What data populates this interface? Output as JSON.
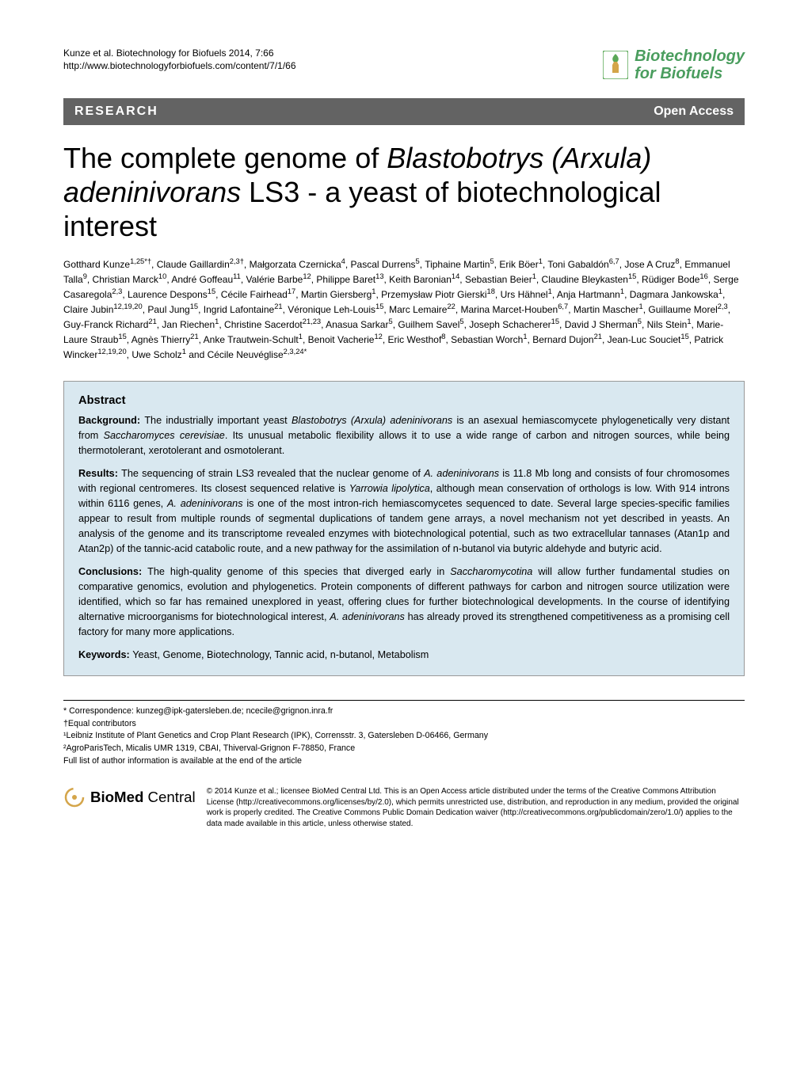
{
  "header": {
    "citation_line1": "Kunze et al. Biotechnology for Biofuels 2014, 7:66",
    "citation_line2": "http://www.biotechnologyforbiofuels.com/content/7/1/66",
    "journal_name_line1": "Biotechnology",
    "journal_name_line2": "for Biofuels",
    "logo_colors": {
      "leaf": "#5aa857",
      "flask": "#d4a54a",
      "bg": "#ffffff"
    }
  },
  "banner": {
    "left": "RESEARCH",
    "right": "Open Access",
    "bg_color": "#636363",
    "text_color": "#ffffff"
  },
  "title": {
    "prefix": "The complete genome of ",
    "italic": "Blastobotrys (Arxula) adeninivorans",
    "suffix": " LS3 - a yeast of biotechnological interest"
  },
  "authors_html": "Gotthard Kunze<sup>1,25*†</sup>, Claude Gaillardin<sup>2,3†</sup>, Małgorzata Czernicka<sup>4</sup>, Pascal Durrens<sup>5</sup>, Tiphaine Martin<sup>5</sup>, Erik Böer<sup>1</sup>, Toni Gabaldón<sup>6,7</sup>, Jose A Cruz<sup>8</sup>, Emmanuel Talla<sup>9</sup>, Christian Marck<sup>10</sup>, André Goffeau<sup>11</sup>, Valérie Barbe<sup>12</sup>, Philippe Baret<sup>13</sup>, Keith Baronian<sup>14</sup>, Sebastian Beier<sup>1</sup>, Claudine Bleykasten<sup>15</sup>, Rüdiger Bode<sup>16</sup>, Serge Casaregola<sup>2,3</sup>, Laurence Despons<sup>15</sup>, Cécile Fairhead<sup>17</sup>, Martin Giersberg<sup>1</sup>, Przemysław Piotr Gierski<sup>18</sup>, Urs Hähnel<sup>1</sup>, Anja Hartmann<sup>1</sup>, Dagmara Jankowska<sup>1</sup>, Claire Jubin<sup>12,19,20</sup>, Paul Jung<sup>15</sup>, Ingrid Lafontaine<sup>21</sup>, Véronique Leh-Louis<sup>15</sup>, Marc Lemaire<sup>22</sup>, Marina Marcet-Houben<sup>6,7</sup>, Martin Mascher<sup>1</sup>, Guillaume Morel<sup>2,3</sup>, Guy-Franck Richard<sup>21</sup>, Jan Riechen<sup>1</sup>, Christine Sacerdot<sup>21,23</sup>, Anasua Sarkar<sup>5</sup>, Guilhem Savel<sup>5</sup>, Joseph Schacherer<sup>15</sup>, David J Sherman<sup>5</sup>, Nils Stein<sup>1</sup>, Marie-Laure Straub<sup>15</sup>, Agnès Thierry<sup>21</sup>, Anke Trautwein-Schult<sup>1</sup>, Benoit Vacherie<sup>12</sup>, Eric Westhof<sup>8</sup>, Sebastian Worch<sup>1</sup>, Bernard Dujon<sup>21</sup>, Jean-Luc Souciet<sup>15</sup>, Patrick Wincker<sup>12,19,20</sup>, Uwe Scholz<sup>1</sup> and Cécile Neuvéglise<sup>2,3,24*</sup>",
  "abstract": {
    "header": "Abstract",
    "background_label": "Background: ",
    "background_text": "The industrially important yeast Blastobotrys (Arxula) adeninivorans is an asexual hemiascomycete phylogenetically very distant from Saccharomyces cerevisiae. Its unusual metabolic flexibility allows it to use a wide range of carbon and nitrogen sources, while being thermotolerant, xerotolerant and osmotolerant.",
    "results_label": "Results: ",
    "results_text": "The sequencing of strain LS3 revealed that the nuclear genome of A. adeninivorans is 11.8 Mb long and consists of four chromosomes with regional centromeres. Its closest sequenced relative is Yarrowia lipolytica, although mean conservation of orthologs is low. With 914 introns within 6116 genes, A. adeninivorans is one of the most intron-rich hemiascomycetes sequenced to date. Several large species-specific families appear to result from multiple rounds of segmental duplications of tandem gene arrays, a novel mechanism not yet described in yeasts. An analysis of the genome and its transcriptome revealed enzymes with biotechnological potential, such as two extracellular tannases (Atan1p and Atan2p) of the tannic-acid catabolic route, and a new pathway for the assimilation of n-butanol via butyric aldehyde and butyric acid.",
    "conclusions_label": "Conclusions: ",
    "conclusions_text": "The high-quality genome of this species that diverged early in Saccharomycotina will allow further fundamental studies on comparative genomics, evolution and phylogenetics. Protein components of different pathways for carbon and nitrogen source utilization were identified, which so far has remained unexplored in yeast, offering clues for further biotechnological developments. In the course of identifying alternative microorganisms for biotechnological interest, A. adeninivorans has already proved its strengthened competitiveness as a promising cell factory for many more applications.",
    "keywords_label": "Keywords: ",
    "keywords_text": "Yeast, Genome, Biotechnology, Tannic acid, n-butanol, Metabolism",
    "box_bg": "#d9e8f0",
    "box_border": "#999999"
  },
  "footer": {
    "correspondence": "* Correspondence: kunzeg@ipk-gatersleben.de; ncecile@grignon.inra.fr",
    "equal": "†Equal contributors",
    "affil1": "¹Leibniz Institute of Plant Genetics and Crop Plant Research (IPK), Corrensstr. 3, Gatersleben D-06466, Germany",
    "affil2": "²AgroParisTech, Micalis UMR 1319, CBAI, Thiverval-Grignon F-78850, France",
    "full_list": "Full list of author information is available at the end of the article"
  },
  "biomed": {
    "name_left": "BioMed",
    "name_right": " Central",
    "icon_color": "#d4a54a",
    "license": "© 2014 Kunze et al.; licensee BioMed Central Ltd. This is an Open Access article distributed under the terms of the Creative Commons Attribution License (http://creativecommons.org/licenses/by/2.0), which permits unrestricted use, distribution, and reproduction in any medium, provided the original work is properly credited. The Creative Commons Public Domain Dedication waiver (http://creativecommons.org/publicdomain/zero/1.0/) applies to the data made available in this article, unless otherwise stated."
  }
}
